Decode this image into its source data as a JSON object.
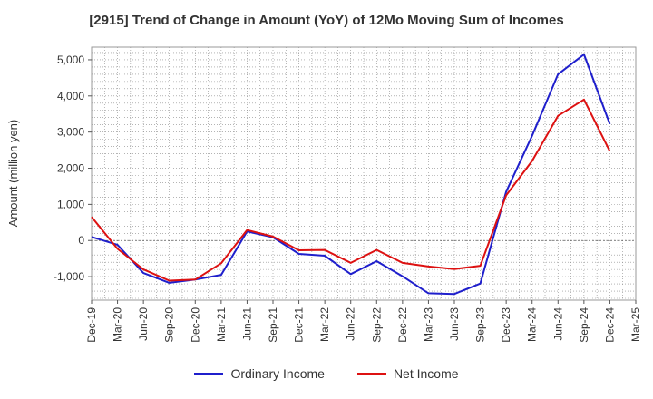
{
  "chart_data": {
    "type": "line",
    "title": "[2915]  Trend of Change in Amount (YoY) of 12Mo Moving Sum of Incomes",
    "xlabel": "",
    "ylabel": "Amount (million yen)",
    "x_ticks": [
      "Dec-19",
      "Mar-20",
      "Jun-20",
      "Sep-20",
      "Dec-20",
      "Mar-21",
      "Jun-21",
      "Sep-21",
      "Dec-21",
      "Mar-22",
      "Jun-22",
      "Sep-22",
      "Dec-22",
      "Mar-23",
      "Jun-23",
      "Sep-23",
      "Dec-23",
      "Mar-24",
      "Jun-24",
      "Sep-24",
      "Dec-24",
      "Mar-25"
    ],
    "y_ticks": [
      -1000,
      0,
      1000,
      2000,
      3000,
      4000,
      5000
    ],
    "y_tick_labels": [
      "-1,000",
      "0",
      "1,000",
      "2,000",
      "3,000",
      "4,000",
      "5,000"
    ],
    "ylim": [
      -1650,
      5350
    ],
    "grid": true,
    "legend_position": "bottom",
    "series": [
      {
        "name": "Ordinary Income",
        "color": "#1f1fcc",
        "x": [
          "Dec-19",
          "Mar-20",
          "Jun-20",
          "Sep-20",
          "Dec-20",
          "Mar-21",
          "Jun-21",
          "Sep-21",
          "Dec-21",
          "Mar-22",
          "Jun-22",
          "Sep-22",
          "Dec-22",
          "Mar-23",
          "Jun-23",
          "Sep-23",
          "Dec-23",
          "Mar-24",
          "Jun-24",
          "Sep-24",
          "Dec-24"
        ],
        "values": [
          100,
          -120,
          -900,
          -1170,
          -1080,
          -950,
          250,
          90,
          -370,
          -420,
          -930,
          -570,
          -990,
          -1460,
          -1480,
          -1190,
          1350,
          2900,
          4600,
          5150,
          3220
        ]
      },
      {
        "name": "Net Income",
        "color": "#dd1111",
        "x": [
          "Dec-19",
          "Mar-20",
          "Jun-20",
          "Sep-20",
          "Dec-20",
          "Mar-21",
          "Jun-21",
          "Sep-21",
          "Dec-21",
          "Mar-22",
          "Jun-22",
          "Sep-22",
          "Dec-22",
          "Mar-23",
          "Jun-23",
          "Sep-23",
          "Dec-23",
          "Mar-24",
          "Jun-24",
          "Sep-24",
          "Dec-24"
        ],
        "values": [
          650,
          -230,
          -800,
          -1110,
          -1080,
          -630,
          290,
          110,
          -270,
          -260,
          -620,
          -260,
          -620,
          -720,
          -790,
          -700,
          1250,
          2200,
          3450,
          3900,
          2470
        ]
      }
    ]
  }
}
